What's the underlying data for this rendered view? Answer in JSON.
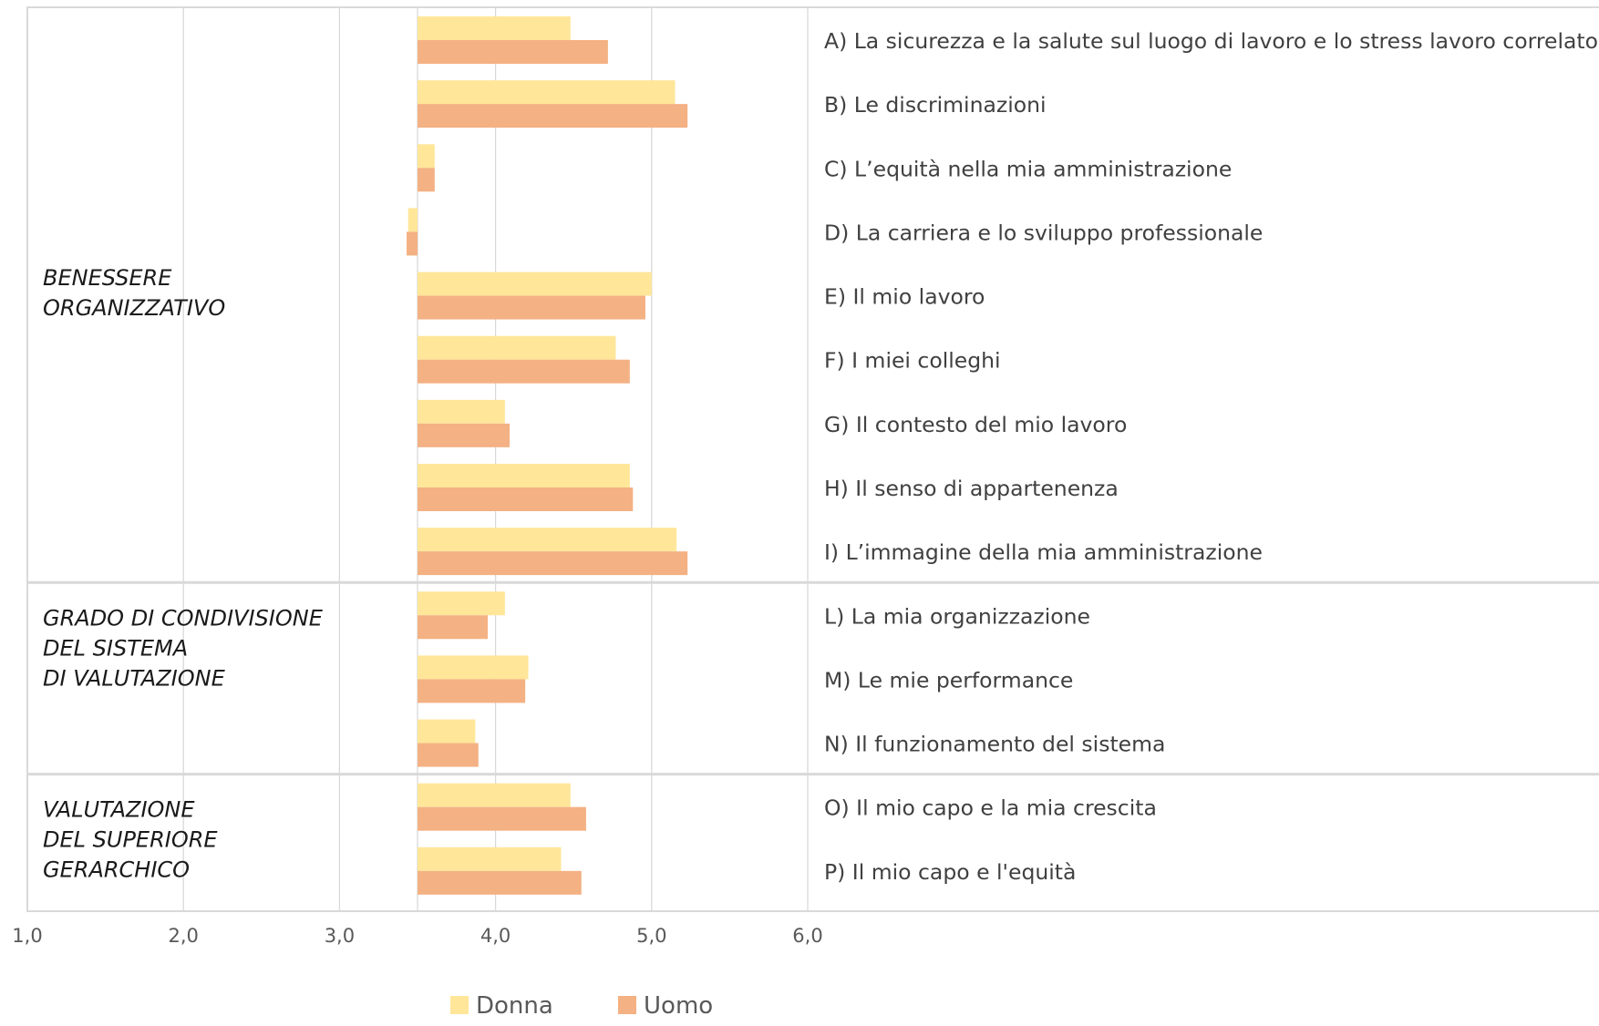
{
  "chart_data": {
    "type": "bar",
    "orientation": "horizontal",
    "baseline": 3.5,
    "xlim": [
      1.0,
      6.0
    ],
    "x_ticks": [
      "1,0",
      "2,0",
      "3,0",
      "4,0",
      "5,0",
      "6,0"
    ],
    "tick_values": [
      1,
      2,
      3,
      4,
      5,
      6
    ],
    "grid": true,
    "legend_position": "bottom",
    "groups": [
      {
        "label": [
          "BENESSERE",
          "ORGANIZZATIVO"
        ],
        "count": 9
      },
      {
        "label": [
          "GRADO DI CONDIVISIONE",
          "DEL SISTEMA",
          "DI VALUTAZIONE"
        ],
        "count": 3
      },
      {
        "label": [
          "VALUTAZIONE",
          "DEL SUPERIORE",
          "GERARCHICO"
        ],
        "count": 2
      }
    ],
    "categories": [
      "A) La sicurezza e la salute sul luogo di lavoro e lo stress lavoro correlato",
      "B) Le discriminazioni",
      "C) L’equità nella mia amministrazione",
      "D) La carriera e lo sviluppo professionale",
      "E) Il mio lavoro",
      "F) I miei colleghi",
      "G) Il contesto del mio lavoro",
      "H) Il senso di appartenenza",
      "I) L’immagine della mia amministrazione",
      "L) La mia organizzazione",
      "M) Le mie performance",
      "N) Il funzionamento del sistema",
      "O) Il mio capo e la mia crescita",
      "P) Il mio capo e l'equità"
    ],
    "series": [
      {
        "name": "Donna",
        "color": "#FFE699",
        "values": [
          4.48,
          5.15,
          3.61,
          3.44,
          5.0,
          4.77,
          4.06,
          4.86,
          5.16,
          4.06,
          4.21,
          3.87,
          4.48,
          4.42
        ]
      },
      {
        "name": "Uomo",
        "color": "#F4B183",
        "values": [
          4.72,
          5.23,
          3.61,
          3.43,
          4.96,
          4.86,
          4.09,
          4.88,
          5.23,
          3.95,
          4.19,
          3.89,
          4.58,
          4.55
        ]
      }
    ]
  }
}
